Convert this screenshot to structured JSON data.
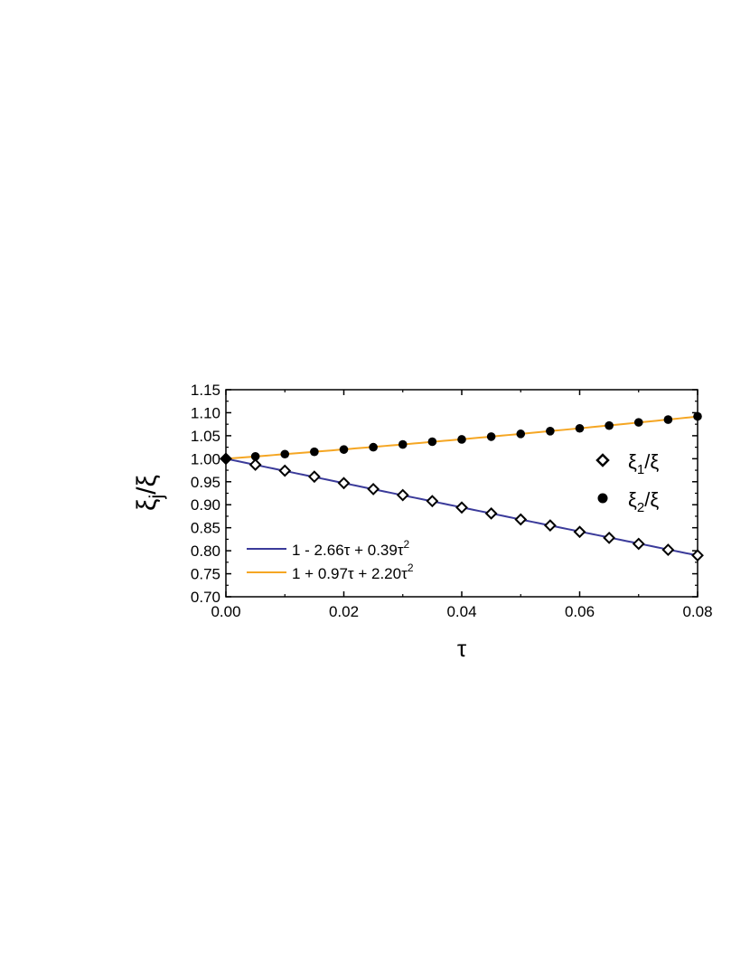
{
  "chart_data": {
    "type": "scatter",
    "xlabel": "τ",
    "ylabel": {
      "base": "ξ",
      "sub": "j",
      "after": "/ξ"
    },
    "xlim": [
      0,
      0.08
    ],
    "ylim": [
      0.7,
      1.15
    ],
    "xticks": [
      "0.00",
      "0.02",
      "0.04",
      "0.06",
      "0.08"
    ],
    "yticks": [
      "0.70",
      "0.75",
      "0.80",
      "0.85",
      "0.90",
      "0.95",
      "1.00",
      "1.05",
      "1.10",
      "1.15"
    ],
    "x": [
      0,
      0.005,
      0.01,
      0.015,
      0.02,
      0.025,
      0.03,
      0.035,
      0.04,
      0.045,
      0.05,
      0.055,
      0.06,
      0.065,
      0.07,
      0.075,
      0.08
    ],
    "series": [
      {
        "name": "ξ1/ξ",
        "legend": {
          "base": "ξ",
          "sub": "1",
          "after": "/ξ"
        },
        "marker": "open-diamond",
        "values": [
          1.0,
          0.987,
          0.974,
          0.961,
          0.947,
          0.934,
          0.921,
          0.908,
          0.894,
          0.881,
          0.868,
          0.855,
          0.841,
          0.828,
          0.815,
          0.802,
          0.79
        ]
      },
      {
        "name": "ξ2/ξ",
        "legend": {
          "base": "ξ",
          "sub": "2",
          "after": "/ξ"
        },
        "marker": "filled-circle",
        "values": [
          1.0,
          1.005,
          1.01,
          1.015,
          1.02,
          1.025,
          1.031,
          1.037,
          1.042,
          1.048,
          1.054,
          1.06,
          1.066,
          1.072,
          1.079,
          1.085,
          1.092
        ]
      }
    ],
    "fits": [
      {
        "label_main": "1 - 2.66τ + 0.39τ",
        "label_sup": "2",
        "color": "#3b3b9a",
        "coef": [
          1,
          -2.66,
          0.39
        ]
      },
      {
        "label_main": "1 + 0.97τ + 2.20τ",
        "label_sup": "2",
        "color": "#f5a623",
        "coef": [
          1,
          0.97,
          2.2
        ]
      }
    ],
    "legend_placement": "right (markers), bottom-left (fit lines)",
    "grid": false
  }
}
